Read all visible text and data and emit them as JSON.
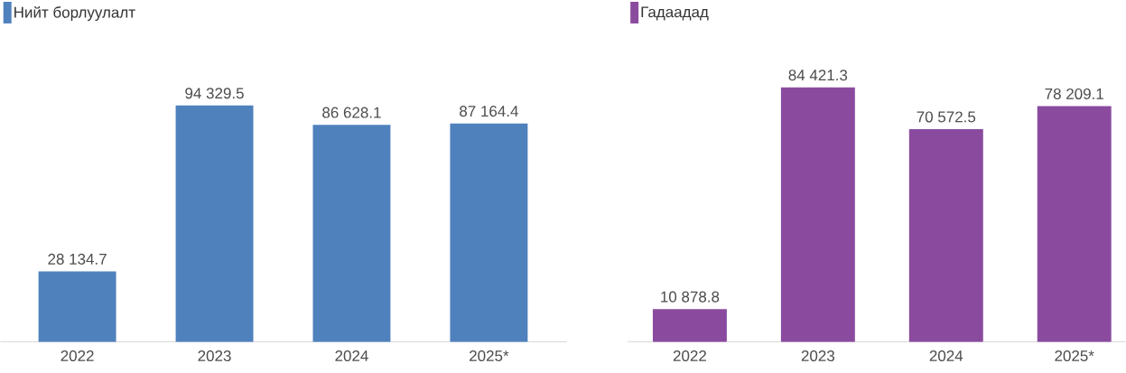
{
  "chart_data": [
    {
      "type": "bar",
      "categories": [
        "2022",
        "2023",
        "2024",
        "2025*"
      ],
      "legend": "top left",
      "series": [
        {
          "name": "Нийт борлуулалт",
          "color": "#4f81bd",
          "values": [
            28134.7,
            94329.5,
            86628.1,
            87164.4
          ],
          "value_labels": [
            "28 134.7",
            "94 329.5",
            "86 628.1",
            "87 164.4"
          ]
        }
      ]
    },
    {
      "type": "bar",
      "categories": [
        "2022",
        "2023",
        "2024",
        "2025*"
      ],
      "legend": "top left",
      "series": [
        {
          "name": "Гадаадад",
          "color": "#8a4b9f",
          "values": [
            10878.8,
            84421.3,
            70572.5,
            78209.1
          ],
          "value_labels": [
            "10 878.8",
            "84 421.3",
            "70 572.5",
            "78 209.1"
          ]
        }
      ]
    }
  ]
}
